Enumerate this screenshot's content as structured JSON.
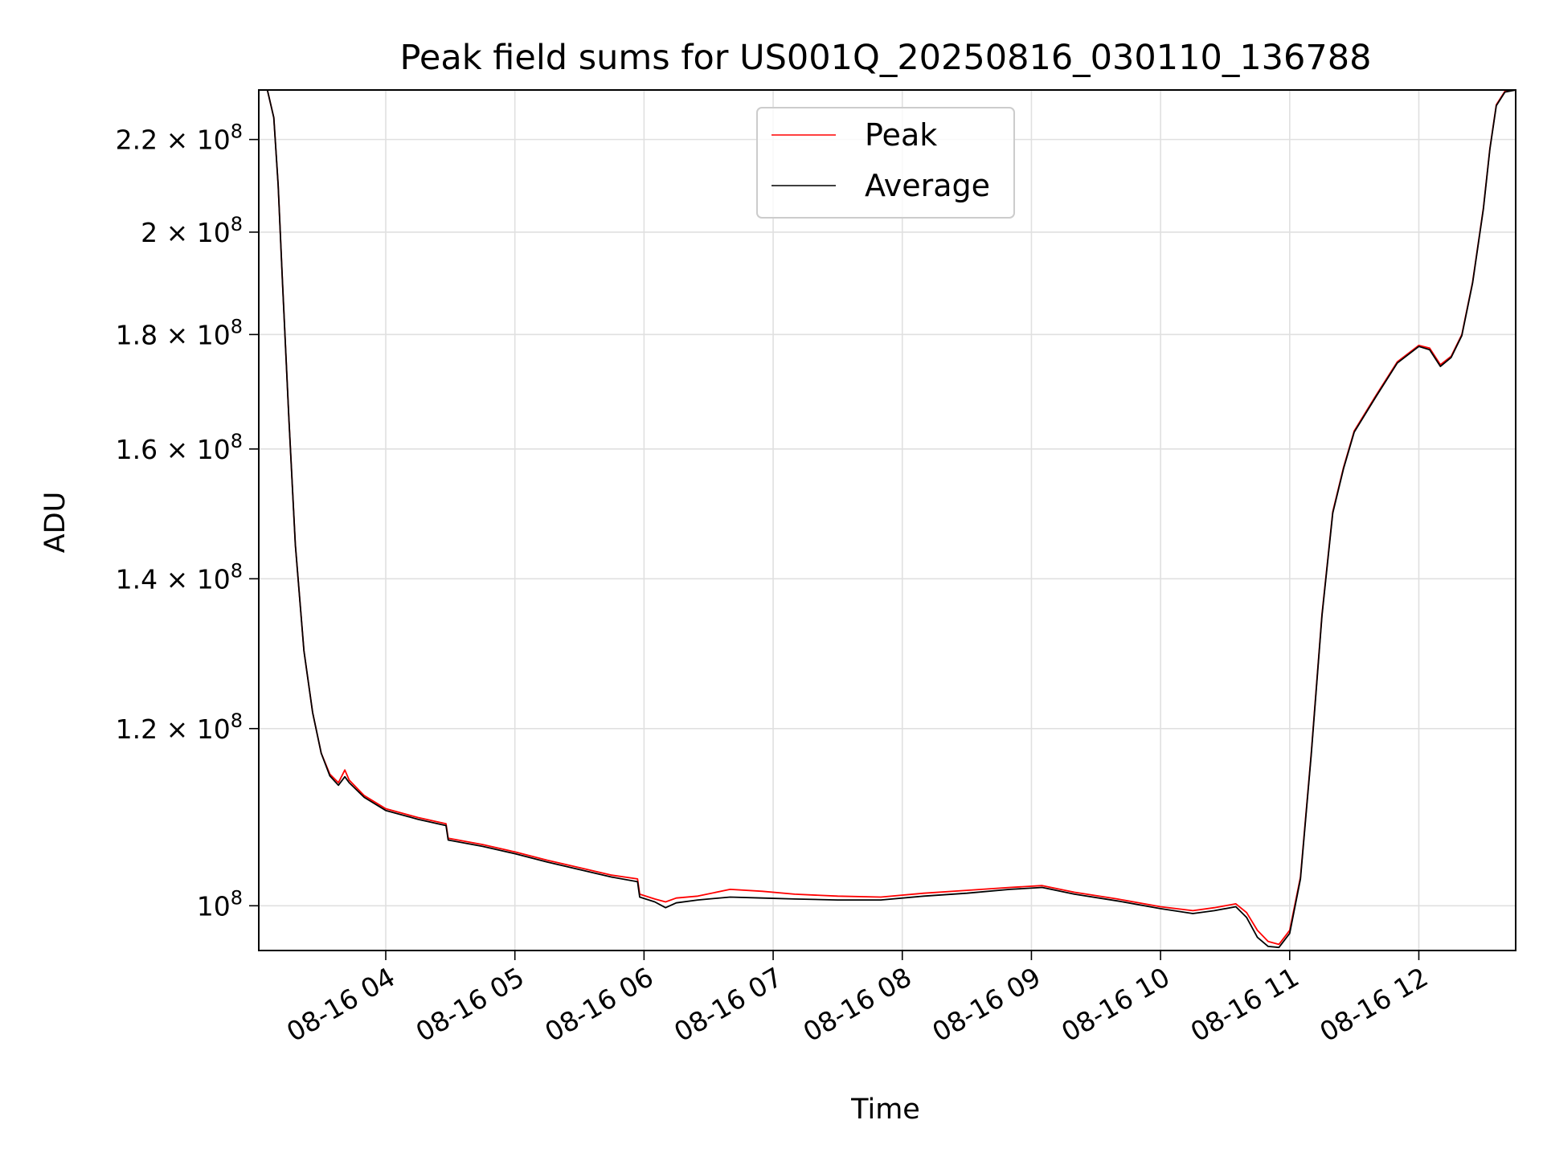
{
  "chart_data": {
    "type": "line",
    "title": "Peak field sums for US001Q_20250816_030110_136788",
    "xlabel": "Time",
    "ylabel": "ADU",
    "x_axis_type": "time",
    "xlim": [
      "2025-08-16 03:01",
      "2025-08-16 12:45"
    ],
    "ylim": [
      95500000,
      231500000
    ],
    "y_scale": "log",
    "grid": true,
    "legend_position": "upper center",
    "x_ticks": [
      "2025-08-16 04:00",
      "2025-08-16 05:00",
      "2025-08-16 06:00",
      "2025-08-16 07:00",
      "2025-08-16 08:00",
      "2025-08-16 09:00",
      "2025-08-16 10:00",
      "2025-08-16 11:00",
      "2025-08-16 12:00"
    ],
    "x_tick_labels": [
      "08-16 04",
      "08-16 05",
      "08-16 06",
      "08-16 07",
      "08-16 08",
      "08-16 09",
      "08-16 10",
      "08-16 11",
      "08-16 12"
    ],
    "y_ticks": [
      100000000,
      120000000,
      140000000,
      160000000,
      180000000,
      200000000,
      220000000
    ],
    "y_tick_labels": [
      {
        "mantissa": "",
        "exp": "8"
      },
      {
        "mantissa": "1.2",
        "exp": "8"
      },
      {
        "mantissa": "1.4",
        "exp": "8"
      },
      {
        "mantissa": "1.6",
        "exp": "8"
      },
      {
        "mantissa": "1.8",
        "exp": "8"
      },
      {
        "mantissa": "2",
        "exp": "8"
      },
      {
        "mantissa": "2.2",
        "exp": "8"
      }
    ],
    "y_tick_base": "10",
    "y_tick_times": "×",
    "series": [
      {
        "name": "Peak",
        "color": "#ff0000",
        "x": [
          "2025-08-16 03:01",
          "2025-08-16 03:05",
          "2025-08-16 03:08",
          "2025-08-16 03:10",
          "2025-08-16 03:12",
          "2025-08-16 03:15",
          "2025-08-16 03:18",
          "2025-08-16 03:22",
          "2025-08-16 03:26",
          "2025-08-16 03:30",
          "2025-08-16 03:34",
          "2025-08-16 03:38",
          "2025-08-16 03:41",
          "2025-08-16 03:43",
          "2025-08-16 03:50",
          "2025-08-16 04:00",
          "2025-08-16 04:15",
          "2025-08-16 04:28",
          "2025-08-16 04:29",
          "2025-08-16 04:45",
          "2025-08-16 05:00",
          "2025-08-16 05:15",
          "2025-08-16 05:30",
          "2025-08-16 05:45",
          "2025-08-16 05:57",
          "2025-08-16 05:58",
          "2025-08-16 06:05",
          "2025-08-16 06:10",
          "2025-08-16 06:15",
          "2025-08-16 06:25",
          "2025-08-16 06:40",
          "2025-08-16 06:55",
          "2025-08-16 07:10",
          "2025-08-16 07:30",
          "2025-08-16 07:50",
          "2025-08-16 08:10",
          "2025-08-16 08:30",
          "2025-08-16 08:50",
          "2025-08-16 09:05",
          "2025-08-16 09:20",
          "2025-08-16 09:40",
          "2025-08-16 10:00",
          "2025-08-16 10:15",
          "2025-08-16 10:25",
          "2025-08-16 10:35",
          "2025-08-16 10:40",
          "2025-08-16 10:45",
          "2025-08-16 10:50",
          "2025-08-16 10:55",
          "2025-08-16 11:00",
          "2025-08-16 11:05",
          "2025-08-16 11:10",
          "2025-08-16 11:15",
          "2025-08-16 11:20",
          "2025-08-16 11:25",
          "2025-08-16 11:30",
          "2025-08-16 11:40",
          "2025-08-16 11:50",
          "2025-08-16 12:00",
          "2025-08-16 12:05",
          "2025-08-16 12:10",
          "2025-08-16 12:15",
          "2025-08-16 12:20",
          "2025-08-16 12:25",
          "2025-08-16 12:30",
          "2025-08-16 12:33",
          "2025-08-16 12:36",
          "2025-08-16 12:40",
          "2025-08-16 12:45"
        ],
        "values": [
          231500000,
          231500000,
          225000000,
          210000000,
          190000000,
          165000000,
          145000000,
          130000000,
          122000000,
          117000000,
          114500000,
          113500000,
          115000000,
          113800000,
          112000000,
          110500000,
          109500000,
          108800000,
          107200000,
          106500000,
          105700000,
          104800000,
          104000000,
          103200000,
          102800000,
          101200000,
          100700000,
          100400000,
          100800000,
          101000000,
          101700000,
          101500000,
          101200000,
          101000000,
          100900000,
          101300000,
          101600000,
          101900000,
          102100000,
          101400000,
          100700000,
          99900000,
          99500000,
          99800000,
          100200000,
          99300000,
          97500000,
          96400000,
          96100000,
          97500000,
          103000000,
          117000000,
          135000000,
          150000000,
          157000000,
          163000000,
          169000000,
          175000000,
          178000000,
          177500000,
          174500000,
          176000000,
          180000000,
          190000000,
          205000000,
          218000000,
          228000000,
          231200000,
          231500000
        ]
      },
      {
        "name": "Average",
        "color": "#000000",
        "x": [
          "2025-08-16 03:01",
          "2025-08-16 03:05",
          "2025-08-16 03:08",
          "2025-08-16 03:10",
          "2025-08-16 03:12",
          "2025-08-16 03:15",
          "2025-08-16 03:18",
          "2025-08-16 03:22",
          "2025-08-16 03:26",
          "2025-08-16 03:30",
          "2025-08-16 03:34",
          "2025-08-16 03:38",
          "2025-08-16 03:41",
          "2025-08-16 03:43",
          "2025-08-16 03:50",
          "2025-08-16 04:00",
          "2025-08-16 04:15",
          "2025-08-16 04:28",
          "2025-08-16 04:29",
          "2025-08-16 04:45",
          "2025-08-16 05:00",
          "2025-08-16 05:15",
          "2025-08-16 05:30",
          "2025-08-16 05:45",
          "2025-08-16 05:57",
          "2025-08-16 05:58",
          "2025-08-16 06:05",
          "2025-08-16 06:10",
          "2025-08-16 06:15",
          "2025-08-16 06:25",
          "2025-08-16 06:40",
          "2025-08-16 06:55",
          "2025-08-16 07:10",
          "2025-08-16 07:30",
          "2025-08-16 07:50",
          "2025-08-16 08:10",
          "2025-08-16 08:30",
          "2025-08-16 08:50",
          "2025-08-16 09:05",
          "2025-08-16 09:20",
          "2025-08-16 09:40",
          "2025-08-16 10:00",
          "2025-08-16 10:15",
          "2025-08-16 10:25",
          "2025-08-16 10:35",
          "2025-08-16 10:40",
          "2025-08-16 10:45",
          "2025-08-16 10:50",
          "2025-08-16 10:55",
          "2025-08-16 11:00",
          "2025-08-16 11:05",
          "2025-08-16 11:10",
          "2025-08-16 11:15",
          "2025-08-16 11:20",
          "2025-08-16 11:25",
          "2025-08-16 11:30",
          "2025-08-16 11:40",
          "2025-08-16 11:50",
          "2025-08-16 12:00",
          "2025-08-16 12:05",
          "2025-08-16 12:10",
          "2025-08-16 12:15",
          "2025-08-16 12:20",
          "2025-08-16 12:25",
          "2025-08-16 12:30",
          "2025-08-16 12:33",
          "2025-08-16 12:36",
          "2025-08-16 12:40",
          "2025-08-16 12:45"
        ],
        "values": [
          231500000,
          231500000,
          225000000,
          210000000,
          190000000,
          165000000,
          145000000,
          130000000,
          122000000,
          117000000,
          114300000,
          113200000,
          114200000,
          113500000,
          111800000,
          110300000,
          109300000,
          108600000,
          107000000,
          106300000,
          105500000,
          104600000,
          103800000,
          103000000,
          102500000,
          100900000,
          100400000,
          99800000,
          100300000,
          100600000,
          100900000,
          100800000,
          100700000,
          100600000,
          100600000,
          101000000,
          101300000,
          101700000,
          101900000,
          101200000,
          100500000,
          99700000,
          99200000,
          99500000,
          99900000,
          98800000,
          96800000,
          95900000,
          95800000,
          97200000,
          102800000,
          116800000,
          134800000,
          149800000,
          156800000,
          162800000,
          168800000,
          174800000,
          177800000,
          177200000,
          174200000,
          175800000,
          179800000,
          189800000,
          204800000,
          217800000,
          227800000,
          231000000,
          231500000
        ]
      }
    ]
  }
}
